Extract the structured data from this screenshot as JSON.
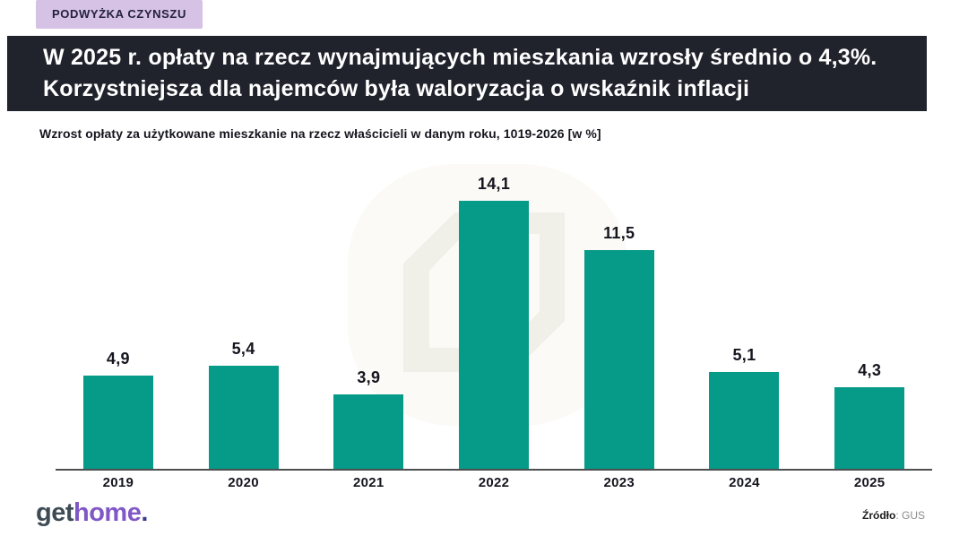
{
  "badge": {
    "label": "PODWYŻKA CZYNSZU"
  },
  "header": {
    "title": "W 2025 r. opłaty na rzecz wynajmujących mieszkania wzrosły średnio o 4,3%. Korzystniejsza dla najemców była waloryzacja o wskaźnik inflacji"
  },
  "subtitle": "Wzrost opłaty za użytkowane mieszkanie na rzecz właścicieli w danym roku, 1019-2026 [w %]",
  "chart_data": {
    "type": "bar",
    "title": "Wzrost opłaty za użytkowane mieszkanie na rzecz właścicieli w danym roku, 1019-2026 [w %]",
    "categories": [
      "2019",
      "2020",
      "2021",
      "2022",
      "2023",
      "2024",
      "2025"
    ],
    "values": [
      4.9,
      5.4,
      3.9,
      14.1,
      11.5,
      5.1,
      4.3
    ],
    "value_labels": [
      "4,9",
      "5,4",
      "3,9",
      "14,1",
      "11,5",
      "5,1",
      "4,3"
    ],
    "xlabel": "",
    "ylabel": "",
    "ylim": [
      0,
      14.1
    ],
    "grid": false,
    "legend": false,
    "bar_color": "#069a88"
  },
  "footer": {
    "logo": {
      "part1": "get",
      "part2": "home",
      "part3": "."
    },
    "source_label": "Źródło",
    "source_value": ": GUS"
  },
  "colors": {
    "bar": "#069a88",
    "header_background": "#20222c",
    "badge_background": "#d5c2e4",
    "logo_get": "#3d4b54",
    "logo_home": "#8058c6",
    "logo_dot": "#3c3a8e",
    "text_dark": "#15151f"
  }
}
